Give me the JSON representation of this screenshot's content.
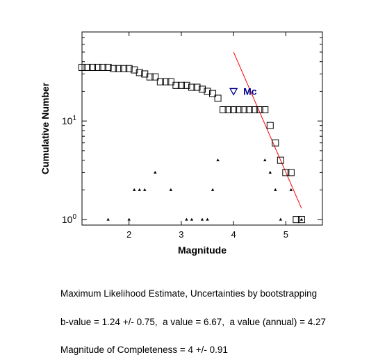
{
  "chart_data": {
    "type": "scatter",
    "xlabel": "Magnitude",
    "ylabel": "Cumulative Number",
    "y_scale": "log",
    "xlim": [
      1.1,
      5.7
    ],
    "ylim": [
      0.88,
      80
    ],
    "x_ticks": [
      2,
      3,
      4,
      5
    ],
    "y_ticks": [
      {
        "value": 1,
        "base": "10",
        "exp": "0"
      },
      {
        "value": 10,
        "base": "10",
        "exp": "1"
      }
    ],
    "grid": false,
    "series": [
      {
        "marker": "open-square",
        "color": "#000000",
        "points": [
          [
            1.1,
            35
          ],
          [
            1.2,
            35
          ],
          [
            1.3,
            35
          ],
          [
            1.4,
            35
          ],
          [
            1.5,
            35
          ],
          [
            1.6,
            35
          ],
          [
            1.7,
            34
          ],
          [
            1.8,
            34
          ],
          [
            1.9,
            34
          ],
          [
            2.0,
            34
          ],
          [
            2.1,
            33
          ],
          [
            2.2,
            31
          ],
          [
            2.3,
            30
          ],
          [
            2.4,
            28
          ],
          [
            2.5,
            28
          ],
          [
            2.6,
            25
          ],
          [
            2.7,
            25
          ],
          [
            2.8,
            25
          ],
          [
            2.9,
            23
          ],
          [
            3.0,
            23
          ],
          [
            3.1,
            23
          ],
          [
            3.2,
            22
          ],
          [
            3.3,
            22
          ],
          [
            3.4,
            21
          ],
          [
            3.5,
            20
          ],
          [
            3.6,
            19
          ],
          [
            3.7,
            17
          ],
          [
            3.8,
            13
          ],
          [
            3.9,
            13
          ],
          [
            4.0,
            13
          ],
          [
            4.1,
            13
          ],
          [
            4.2,
            13
          ],
          [
            4.3,
            13
          ],
          [
            4.4,
            13
          ],
          [
            4.5,
            13
          ],
          [
            4.6,
            13
          ],
          [
            4.7,
            9
          ],
          [
            4.8,
            6
          ],
          [
            4.9,
            4
          ],
          [
            5.0,
            3
          ],
          [
            5.1,
            3
          ],
          [
            5.2,
            1
          ],
          [
            5.3,
            1
          ]
        ]
      },
      {
        "marker": "triangle",
        "color": "#000000",
        "points": [
          [
            1.6,
            1
          ],
          [
            2.0,
            1
          ],
          [
            2.1,
            2
          ],
          [
            2.2,
            2
          ],
          [
            2.3,
            2
          ],
          [
            2.5,
            3
          ],
          [
            2.8,
            2
          ],
          [
            3.1,
            1
          ],
          [
            3.2,
            1
          ],
          [
            3.4,
            1
          ],
          [
            3.5,
            1
          ],
          [
            3.6,
            2
          ],
          [
            3.7,
            4
          ],
          [
            4.6,
            4
          ],
          [
            4.7,
            3
          ],
          [
            4.8,
            2
          ],
          [
            4.9,
            1
          ],
          [
            5.1,
            2
          ],
          [
            5.3,
            1
          ]
        ]
      }
    ],
    "fit_line": {
      "color": "#ff0000",
      "points": [
        [
          4.0,
          50
        ],
        [
          5.3,
          1.3
        ]
      ]
    },
    "mc_marker": {
      "x": 4.0,
      "y": 20,
      "label": "Mc",
      "color": "#00008b"
    }
  },
  "caption": {
    "line1": "Maximum Likelihood Estimate, Uncertainties by bootstrapping",
    "line2": "b-value = 1.24 +/- 0.75,  a value = 6.67,  a value (annual) = 4.27",
    "line3": "Magnitude of Completeness = 4 +/- 0.91"
  }
}
